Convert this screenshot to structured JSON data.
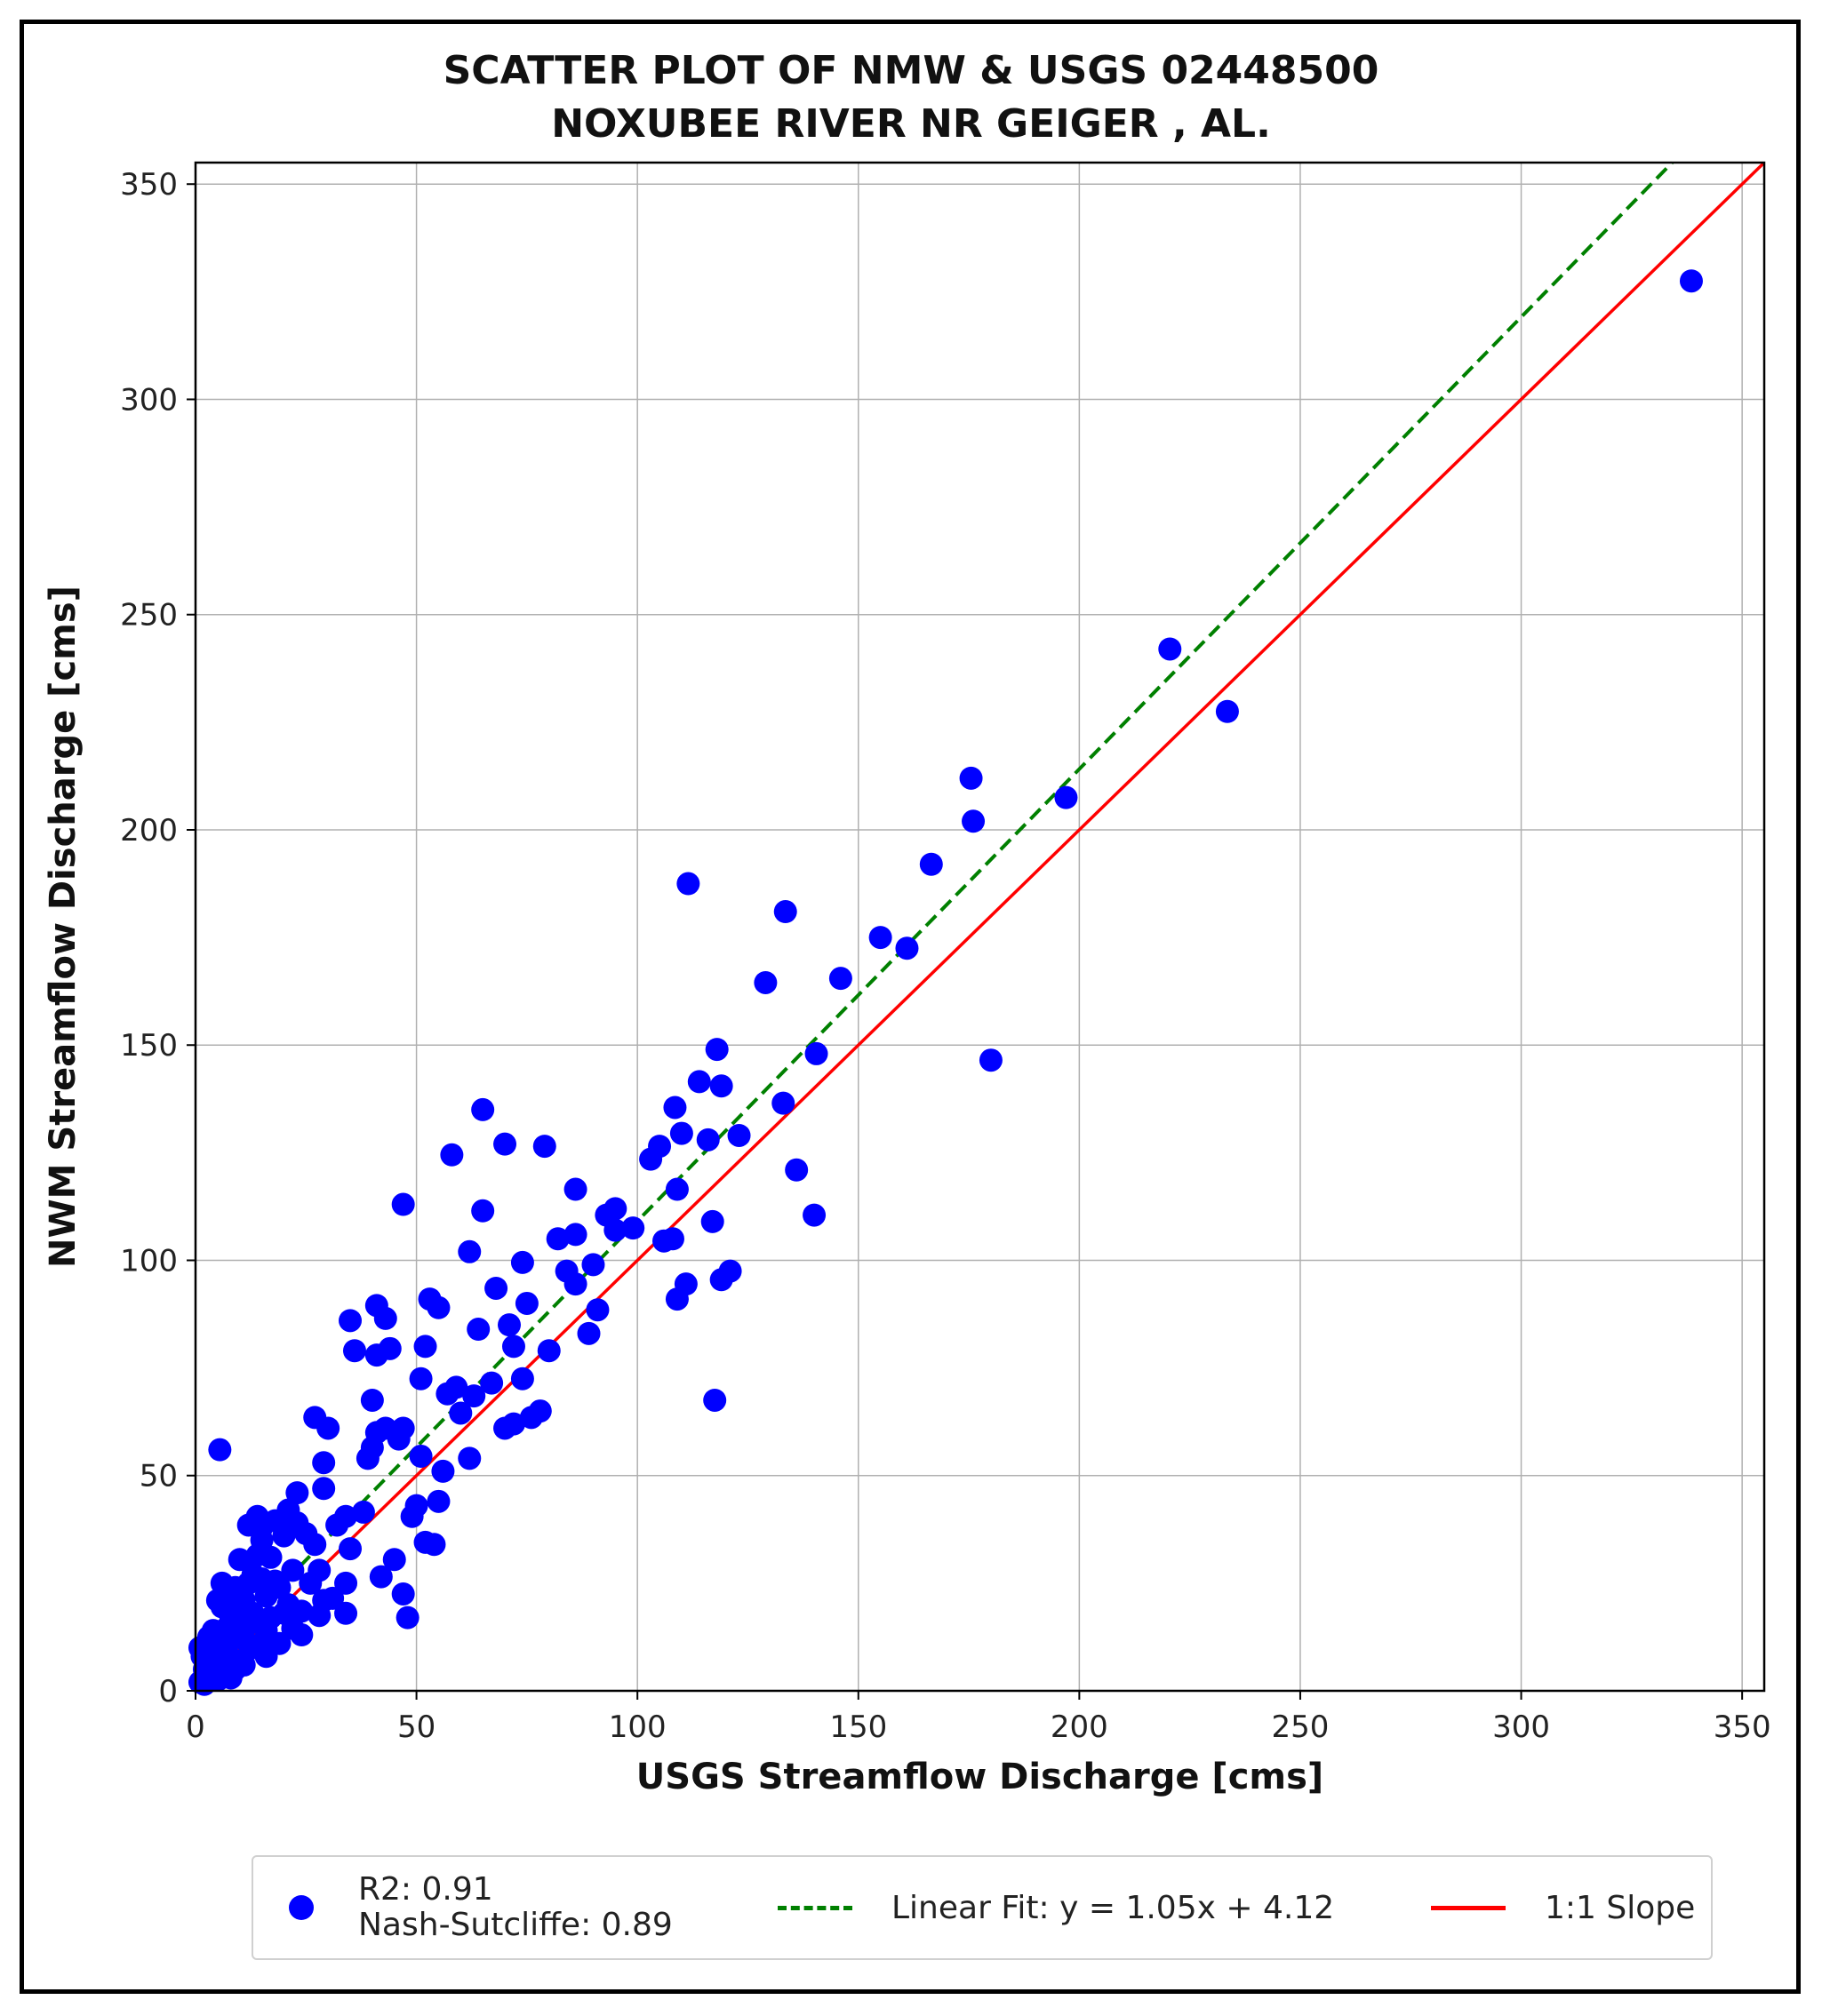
{
  "chart_data": {
    "type": "scatter",
    "title": [
      "SCATTER PLOT OF NMW & USGS 02448500",
      "NOXUBEE RIVER NR GEIGER , AL."
    ],
    "xlabel": "USGS Streamflow Discharge [cms]",
    "ylabel": "NWM Streamflow Discharge [cms]",
    "xlim": [
      0,
      355
    ],
    "ylim": [
      0,
      355
    ],
    "xticks": [
      0,
      50,
      100,
      150,
      200,
      250,
      300,
      350
    ],
    "yticks": [
      0,
      50,
      100,
      150,
      200,
      250,
      300,
      350
    ],
    "grid": true,
    "legend_position": "bottom-outside",
    "colors": {
      "points": "#0000ff",
      "fit": "#008000",
      "one_to_one": "#ff0000"
    },
    "legend": {
      "points": [
        "R2: 0.91",
        "Nash-Sutcliffe: 0.89"
      ],
      "fit": "Linear Fit: y = 1.05x + 4.12",
      "one_to_one": "1:1 Slope"
    },
    "fit_line": {
      "slope": 1.05,
      "intercept": 4.12
    },
    "one_to_one_line": {
      "slope": 1,
      "intercept": 0
    },
    "series": [
      {
        "points": [
          [
            338.5,
            327.5
          ],
          [
            233.5,
            227.5
          ],
          [
            220.5,
            242
          ],
          [
            197,
            207.5
          ],
          [
            180,
            146.5
          ],
          [
            176,
            202
          ],
          [
            175.5,
            212
          ],
          [
            166.5,
            192
          ],
          [
            161,
            172.5
          ],
          [
            155,
            175
          ],
          [
            146,
            165.5
          ],
          [
            140.5,
            148
          ],
          [
            140,
            110.5
          ],
          [
            136,
            121
          ],
          [
            133.5,
            181
          ],
          [
            133,
            136.5
          ],
          [
            129,
            164.5
          ],
          [
            123,
            129
          ],
          [
            121,
            97.5
          ],
          [
            119,
            95.5
          ],
          [
            119,
            140.5
          ],
          [
            118,
            149
          ],
          [
            117.5,
            67.5
          ],
          [
            117,
            109
          ],
          [
            116,
            128
          ],
          [
            114,
            141.5
          ],
          [
            111.5,
            187.5
          ],
          [
            111,
            94.5
          ],
          [
            110,
            129.5
          ],
          [
            109,
            116.5
          ],
          [
            109,
            91
          ],
          [
            108.5,
            135.5
          ],
          [
            108,
            105
          ],
          [
            106,
            104.5
          ],
          [
            105,
            126.5
          ],
          [
            103,
            123.5
          ],
          [
            99,
            107.5
          ],
          [
            95,
            112
          ],
          [
            93,
            110.5
          ],
          [
            95,
            107
          ],
          [
            91,
            88.5
          ],
          [
            90,
            99
          ],
          [
            89,
            83
          ],
          [
            86,
            116.5
          ],
          [
            86,
            94.5
          ],
          [
            86,
            106
          ],
          [
            84,
            97.5
          ],
          [
            82,
            105
          ],
          [
            80,
            79
          ],
          [
            79,
            126.5
          ],
          [
            78,
            65
          ],
          [
            76,
            63.5
          ],
          [
            75,
            90
          ],
          [
            74,
            99.5
          ],
          [
            74,
            72.5
          ],
          [
            72,
            80
          ],
          [
            72,
            62
          ],
          [
            70,
            127
          ],
          [
            71,
            85
          ],
          [
            70,
            61
          ],
          [
            68,
            93.5
          ],
          [
            67,
            71.5
          ],
          [
            65,
            111.5
          ],
          [
            64,
            84
          ],
          [
            65,
            135
          ],
          [
            63,
            68.5
          ],
          [
            62,
            54
          ],
          [
            62,
            102
          ],
          [
            60,
            64.5
          ],
          [
            59,
            70.5
          ],
          [
            58,
            124.5
          ],
          [
            57,
            69
          ],
          [
            56,
            51
          ],
          [
            55,
            44
          ],
          [
            55,
            89
          ],
          [
            54,
            34
          ],
          [
            53,
            91
          ],
          [
            52,
            34.5
          ],
          [
            52,
            80
          ],
          [
            51,
            54.5
          ],
          [
            51,
            72.5
          ],
          [
            50,
            43
          ],
          [
            49,
            40.5
          ],
          [
            48,
            17
          ],
          [
            47,
            61
          ],
          [
            47,
            22.5
          ],
          [
            47,
            113
          ],
          [
            46,
            58.5
          ],
          [
            45,
            30.5
          ],
          [
            44,
            79.5
          ],
          [
            43,
            61
          ],
          [
            43,
            86.5
          ],
          [
            42,
            26.5
          ],
          [
            41,
            78
          ],
          [
            41,
            89.5
          ],
          [
            41,
            60
          ],
          [
            40,
            67.5
          ],
          [
            40,
            56.5
          ],
          [
            39,
            54
          ],
          [
            38,
            41.5
          ],
          [
            36,
            79
          ],
          [
            35,
            86
          ],
          [
            35,
            33
          ],
          [
            34,
            25
          ],
          [
            34,
            40.5
          ],
          [
            34,
            18
          ],
          [
            32,
            38.5
          ],
          [
            31,
            21.5
          ],
          [
            30,
            61
          ],
          [
            29,
            53
          ],
          [
            29,
            21
          ],
          [
            29,
            47
          ],
          [
            28,
            28
          ],
          [
            28,
            17.5
          ],
          [
            27,
            63.5
          ],
          [
            27,
            34
          ],
          [
            26,
            25
          ],
          [
            25,
            36.5
          ],
          [
            24,
            18.5
          ],
          [
            24,
            13
          ],
          [
            23,
            46
          ],
          [
            23,
            39
          ],
          [
            22,
            28
          ],
          [
            22,
            14.5
          ],
          [
            21,
            42
          ],
          [
            21,
            20
          ],
          [
            20,
            18
          ],
          [
            20,
            36
          ],
          [
            19,
            24
          ],
          [
            19,
            11
          ],
          [
            18,
            25.5
          ],
          [
            18,
            39.5
          ],
          [
            17,
            17
          ],
          [
            17,
            31
          ],
          [
            16,
            8
          ],
          [
            16,
            22
          ],
          [
            16,
            14
          ],
          [
            15,
            11
          ],
          [
            15,
            38
          ],
          [
            15,
            35
          ],
          [
            15,
            26
          ],
          [
            14,
            40.5
          ],
          [
            14,
            31.5
          ],
          [
            13,
            18
          ],
          [
            13,
            27
          ],
          [
            13,
            10
          ],
          [
            12,
            25
          ],
          [
            12,
            15.5
          ],
          [
            12,
            38.5
          ],
          [
            11,
            21
          ],
          [
            11,
            12
          ],
          [
            10,
            7
          ],
          [
            10,
            30.5
          ],
          [
            10,
            20.5
          ],
          [
            9,
            24
          ],
          [
            9,
            13.5
          ],
          [
            9,
            5
          ],
          [
            8,
            17
          ],
          [
            8,
            23
          ],
          [
            7,
            9.5
          ],
          [
            7,
            14.5
          ],
          [
            6,
            25
          ],
          [
            6,
            5
          ],
          [
            6,
            19.5
          ],
          [
            5.5,
            56
          ],
          [
            5,
            21
          ],
          [
            5,
            11
          ],
          [
            5,
            2.5
          ],
          [
            4,
            14
          ],
          [
            4,
            7
          ],
          [
            3,
            3
          ],
          [
            3,
            9.5
          ],
          [
            3,
            12.5
          ],
          [
            2,
            5
          ],
          [
            2,
            1.5
          ],
          [
            1.5,
            8
          ],
          [
            1,
            2
          ],
          [
            1,
            10
          ],
          [
            8,
            3
          ],
          [
            11,
            6
          ]
        ]
      }
    ]
  }
}
